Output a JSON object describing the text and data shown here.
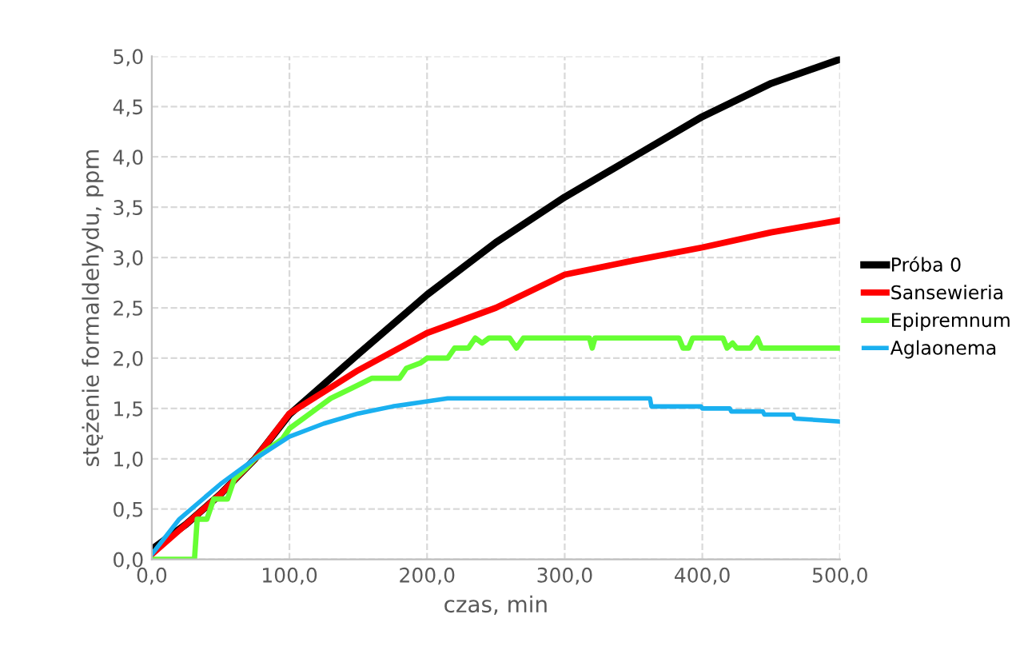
{
  "chart_data": {
    "type": "line",
    "xlabel": "czas, min",
    "ylabel": "stężenie formaldehydu, ppm",
    "xlim": [
      0,
      500
    ],
    "xticks": [
      {
        "value": 0,
        "label": "0,0"
      },
      {
        "value": 100,
        "label": "100,0"
      },
      {
        "value": 200,
        "label": "200,0"
      },
      {
        "value": 300,
        "label": "300,0"
      },
      {
        "value": 400,
        "label": "400,0"
      },
      {
        "value": 500,
        "label": "500,0"
      }
    ],
    "ylim": [
      0,
      5
    ],
    "yticks": [
      {
        "value": 0,
        "label": "0,0"
      },
      {
        "value": 0.5,
        "label": "0,5"
      },
      {
        "value": 1,
        "label": "1,0"
      },
      {
        "value": 1.5,
        "label": "1,5"
      },
      {
        "value": 2,
        "label": "2,0"
      },
      {
        "value": 2.5,
        "label": "2,5"
      },
      {
        "value": 3,
        "label": "3,0"
      },
      {
        "value": 3.5,
        "label": "3,5"
      },
      {
        "value": 4,
        "label": "4,0"
      },
      {
        "value": 4.5,
        "label": "4,5"
      },
      {
        "value": 5,
        "label": "5,0"
      }
    ],
    "grid": true,
    "legend": "right",
    "marker": "none",
    "line_style": "solid",
    "series": [
      {
        "name": "Próba 0",
        "color": "#000000",
        "x": [
          0,
          25,
          50,
          75,
          100,
          150,
          200,
          250,
          300,
          350,
          400,
          450,
          500
        ],
        "values": [
          0.1,
          0.35,
          0.65,
          1.0,
          1.44,
          2.04,
          2.63,
          3.15,
          3.6,
          4.0,
          4.4,
          4.73,
          4.97
        ]
      },
      {
        "name": "Sansewieria",
        "color": "#ff0000",
        "x": [
          0,
          25,
          50,
          75,
          100,
          150,
          200,
          250,
          300,
          350,
          400,
          450,
          500
        ],
        "values": [
          0.05,
          0.35,
          0.65,
          1.0,
          1.45,
          1.88,
          2.25,
          2.5,
          2.83,
          2.97,
          3.1,
          3.25,
          3.37
        ]
      },
      {
        "name": "Epipremnum",
        "color": "#66ff33",
        "x": [
          0,
          31,
          33,
          40,
          45,
          55,
          60,
          68,
          75,
          85,
          95,
          100,
          110,
          120,
          130,
          145,
          160,
          180,
          185,
          195,
          200,
          215,
          220,
          230,
          235,
          240,
          245,
          260,
          265,
          270,
          318,
          320,
          322,
          383,
          386,
          390,
          393,
          415,
          418,
          422,
          425,
          435,
          440,
          443,
          500
        ],
        "values": [
          0,
          0,
          0.4,
          0.4,
          0.6,
          0.6,
          0.8,
          0.9,
          1.0,
          1.1,
          1.2,
          1.3,
          1.4,
          1.5,
          1.6,
          1.7,
          1.8,
          1.8,
          1.9,
          1.95,
          2.0,
          2.0,
          2.1,
          2.1,
          2.2,
          2.15,
          2.2,
          2.2,
          2.1,
          2.2,
          2.2,
          2.1,
          2.2,
          2.2,
          2.1,
          2.1,
          2.2,
          2.2,
          2.1,
          2.15,
          2.1,
          2.1,
          2.2,
          2.1,
          2.1
        ]
      },
      {
        "name": "Aglaonema",
        "color": "#1ab0f0",
        "x": [
          0,
          20,
          50,
          75,
          100,
          125,
          150,
          175,
          200,
          215,
          300,
          362,
          363,
          399,
          400,
          420,
          421,
          444,
          445,
          466,
          467,
          500
        ],
        "values": [
          0.05,
          0.4,
          0.75,
          1.0,
          1.22,
          1.35,
          1.45,
          1.52,
          1.57,
          1.6,
          1.6,
          1.6,
          1.52,
          1.52,
          1.5,
          1.5,
          1.47,
          1.47,
          1.44,
          1.44,
          1.4,
          1.37
        ]
      }
    ]
  }
}
